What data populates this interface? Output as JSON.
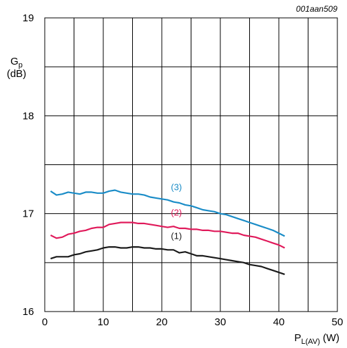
{
  "chart_data": {
    "type": "line",
    "figure_id": "001aan509",
    "ylabel_main": "G",
    "ylabel_sub": "p",
    "ylabel_unit": "(dB)",
    "xlabel_main": "P",
    "xlabel_sub": "L(AV)",
    "xlabel_unit": "(W)",
    "xlim": [
      0,
      50
    ],
    "ylim": [
      16,
      19
    ],
    "x_ticks": [
      "0",
      "10",
      "20",
      "30",
      "40",
      "50"
    ],
    "y_ticks": [
      "16",
      "17",
      "18",
      "19"
    ],
    "x_grid_step": 5,
    "y_grid_step": 0.5,
    "grid": true,
    "series": [
      {
        "name": "(1)",
        "color": "#1a1a1a",
        "points": [
          [
            1,
            16.54
          ],
          [
            2,
            16.56
          ],
          [
            3,
            16.56
          ],
          [
            4,
            16.56
          ],
          [
            5,
            16.58
          ],
          [
            6,
            16.59
          ],
          [
            7,
            16.61
          ],
          [
            8,
            16.62
          ],
          [
            9,
            16.63
          ],
          [
            10,
            16.65
          ],
          [
            11,
            16.66
          ],
          [
            12,
            16.66
          ],
          [
            13,
            16.65
          ],
          [
            14,
            16.65
          ],
          [
            15,
            16.66
          ],
          [
            16,
            16.66
          ],
          [
            17,
            16.65
          ],
          [
            18,
            16.65
          ],
          [
            19,
            16.64
          ],
          [
            20,
            16.64
          ],
          [
            21,
            16.63
          ],
          [
            22,
            16.63
          ],
          [
            23,
            16.6
          ],
          [
            24,
            16.61
          ],
          [
            25,
            16.59
          ],
          [
            26,
            16.57
          ],
          [
            27,
            16.57
          ],
          [
            28,
            16.56
          ],
          [
            29,
            16.55
          ],
          [
            30,
            16.54
          ],
          [
            31,
            16.53
          ],
          [
            32,
            16.52
          ],
          [
            33,
            16.51
          ],
          [
            34,
            16.5
          ],
          [
            35,
            16.48
          ],
          [
            36,
            16.47
          ],
          [
            37,
            16.46
          ],
          [
            38,
            16.44
          ],
          [
            39,
            16.42
          ],
          [
            40,
            16.4
          ],
          [
            41,
            16.38
          ]
        ]
      },
      {
        "name": "(2)",
        "color": "#e0195a",
        "points": [
          [
            1,
            16.78
          ],
          [
            2,
            16.75
          ],
          [
            3,
            16.76
          ],
          [
            4,
            16.79
          ],
          [
            5,
            16.8
          ],
          [
            6,
            16.82
          ],
          [
            7,
            16.83
          ],
          [
            8,
            16.85
          ],
          [
            9,
            16.86
          ],
          [
            10,
            16.86
          ],
          [
            11,
            16.89
          ],
          [
            12,
            16.9
          ],
          [
            13,
            16.91
          ],
          [
            14,
            16.91
          ],
          [
            15,
            16.91
          ],
          [
            16,
            16.9
          ],
          [
            17,
            16.9
          ],
          [
            18,
            16.89
          ],
          [
            19,
            16.88
          ],
          [
            20,
            16.87
          ],
          [
            21,
            16.86
          ],
          [
            22,
            16.87
          ],
          [
            23,
            16.85
          ],
          [
            24,
            16.85
          ],
          [
            25,
            16.84
          ],
          [
            26,
            16.84
          ],
          [
            27,
            16.83
          ],
          [
            28,
            16.83
          ],
          [
            29,
            16.82
          ],
          [
            30,
            16.82
          ],
          [
            31,
            16.81
          ],
          [
            32,
            16.8
          ],
          [
            33,
            16.8
          ],
          [
            34,
            16.78
          ],
          [
            35,
            16.77
          ],
          [
            36,
            16.76
          ],
          [
            37,
            16.74
          ],
          [
            38,
            16.72
          ],
          [
            39,
            16.7
          ],
          [
            40,
            16.68
          ],
          [
            41,
            16.65
          ]
        ]
      },
      {
        "name": "(3)",
        "color": "#1a8cc7",
        "points": [
          [
            1,
            17.23
          ],
          [
            2,
            17.19
          ],
          [
            3,
            17.2
          ],
          [
            4,
            17.22
          ],
          [
            5,
            17.21
          ],
          [
            6,
            17.2
          ],
          [
            7,
            17.22
          ],
          [
            8,
            17.22
          ],
          [
            9,
            17.21
          ],
          [
            10,
            17.21
          ],
          [
            11,
            17.23
          ],
          [
            12,
            17.24
          ],
          [
            13,
            17.22
          ],
          [
            14,
            17.21
          ],
          [
            15,
            17.2
          ],
          [
            16,
            17.2
          ],
          [
            17,
            17.19
          ],
          [
            18,
            17.17
          ],
          [
            19,
            17.16
          ],
          [
            20,
            17.15
          ],
          [
            21,
            17.14
          ],
          [
            22,
            17.12
          ],
          [
            23,
            17.11
          ],
          [
            24,
            17.09
          ],
          [
            25,
            17.08
          ],
          [
            26,
            17.06
          ],
          [
            27,
            17.04
          ],
          [
            28,
            17.03
          ],
          [
            29,
            17.02
          ],
          [
            30,
            17.0
          ],
          [
            31,
            16.99
          ],
          [
            32,
            16.97
          ],
          [
            33,
            16.95
          ],
          [
            34,
            16.93
          ],
          [
            35,
            16.91
          ],
          [
            36,
            16.89
          ],
          [
            37,
            16.87
          ],
          [
            38,
            16.85
          ],
          [
            39,
            16.83
          ],
          [
            40,
            16.8
          ],
          [
            41,
            16.77
          ]
        ]
      }
    ],
    "annotations": [
      {
        "text": "(1)",
        "x": 22.5,
        "y": 16.74,
        "color": "#1a1a1a"
      },
      {
        "text": "(2)",
        "x": 22.5,
        "y": 16.98,
        "color": "#e0195a"
      },
      {
        "text": "(3)",
        "x": 22.5,
        "y": 17.24,
        "color": "#1a8cc7"
      }
    ]
  }
}
